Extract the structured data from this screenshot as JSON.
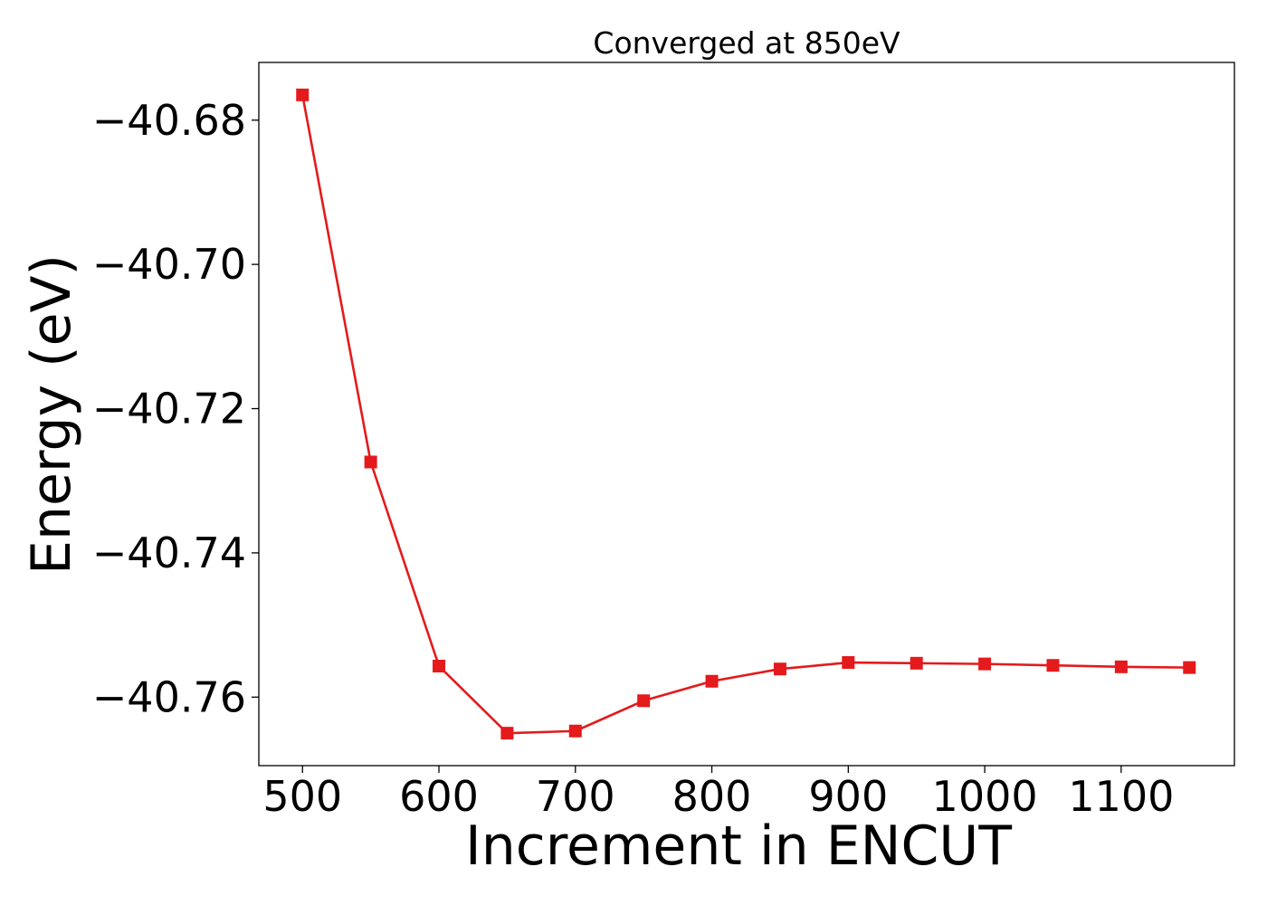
{
  "chart_data": {
    "type": "line",
    "title": "Converged at 850eV",
    "xlabel": "Increment in ENCUT",
    "ylabel": "Energy (eV)",
    "xlim": [
      468,
      1183
    ],
    "ylim": [
      -40.7695,
      -40.672
    ],
    "x_ticks": [
      500,
      600,
      700,
      800,
      900,
      1000,
      1100
    ],
    "x_tick_labels": [
      "500",
      "600",
      "700",
      "800",
      "900",
      "1000",
      "1100"
    ],
    "y_ticks": [
      -40.68,
      -40.7,
      -40.72,
      -40.74,
      -40.76
    ],
    "y_tick_labels": [
      "−40.68",
      "−40.70",
      "−40.72",
      "−40.74",
      "−40.76"
    ],
    "grid": false,
    "series": [
      {
        "color": "#e41a1c",
        "marker": "square",
        "x": [
          500,
          550,
          600,
          650,
          700,
          750,
          800,
          850,
          900,
          950,
          1000,
          1050,
          1100,
          1150
        ],
        "values": [
          -40.6765,
          -40.7274,
          -40.7557,
          -40.765,
          -40.7647,
          -40.7605,
          -40.7578,
          -40.7561,
          -40.7552,
          -40.7553,
          -40.7554,
          -40.7556,
          -40.7558,
          -40.7559
        ]
      }
    ]
  }
}
